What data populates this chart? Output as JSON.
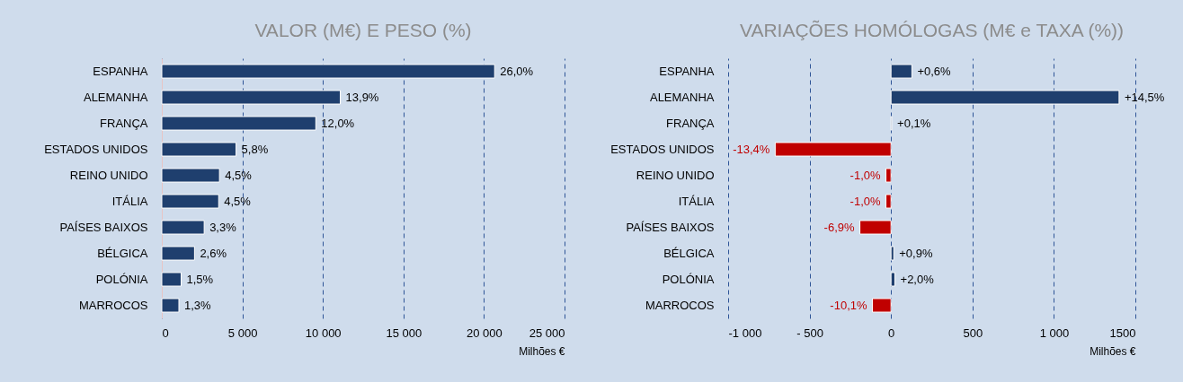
{
  "chart_data": [
    {
      "type": "bar",
      "orientation": "horizontal",
      "title": "VALOR (M€) E PESO (%)",
      "xlabel": "Milhões €",
      "categories": [
        "ESPANHA",
        "ALEMANHA",
        "FRANÇA",
        "ESTADOS UNIDOS",
        "REINO UNIDO",
        "ITÁLIA",
        "PAÍSES BAIXOS",
        "BÉLGICA",
        "POLÓNIA",
        "MARROCOS"
      ],
      "values": [
        20660,
        11080,
        9560,
        4610,
        3580,
        3530,
        2630,
        2030,
        1200,
        1060
      ],
      "colors": [
        "#1f3f6e",
        "#1f3f6e",
        "#1f3f6e",
        "#1f3f6e",
        "#1f3f6e",
        "#1f3f6e",
        "#1f3f6e",
        "#1f3f6e",
        "#1f3f6e",
        "#1f3f6e"
      ],
      "annotations": [
        {
          "text": "26,0%",
          "x": 20660,
          "y": "ESPANHA"
        },
        {
          "text": "13,9%",
          "x": 11080,
          "y": "ALEMANHA"
        },
        {
          "text": "12,0%",
          "x": 9560,
          "y": "FRANÇA"
        },
        {
          "text": "5,8%",
          "x": 4610,
          "y": "ESTADOS UNIDOS"
        },
        {
          "text": "4,5%",
          "x": 3580,
          "y": "REINO UNIDO"
        },
        {
          "text": "4,5%",
          "x": 3530,
          "y": "ITÁLIA"
        },
        {
          "text": "3,3%",
          "x": 2630,
          "y": "PAÍSES BAIXOS"
        },
        {
          "text": "2,6%",
          "x": 2030,
          "y": "BÉLGICA"
        },
        {
          "text": "1,5%",
          "x": 1200,
          "y": "POLÓNIA"
        },
        {
          "text": "1,3%",
          "x": 1060,
          "y": "MARROCOS"
        }
      ],
      "xlim": [
        0,
        25000
      ],
      "xticks": [
        0,
        {
          "value": 5000,
          "label": "5 000"
        },
        {
          "value": 10000,
          "label": "10 000"
        },
        {
          "value": 15000,
          "label": "15 000"
        },
        {
          "value": 20000,
          "label": "20 000"
        },
        {
          "value": 25000,
          "label": "25 000"
        }
      ],
      "grid": "x"
    },
    {
      "type": "bar",
      "orientation": "horizontal",
      "title": "VARIAÇÕES HOMÓLOGAS (M€ e TAXA (%))",
      "xlabel": "Milhões €",
      "categories": [
        "ESPANHA",
        "ALEMANHA",
        "FRANÇA",
        "ESTADOS UNIDOS",
        "REINO UNIDO",
        "ITÁLIA",
        "PAÍSES BAIXOS",
        "BÉLGICA",
        "POLÓNIA",
        "MARROCOS"
      ],
      "values": [
        128,
        1400,
        5,
        -711,
        -31,
        -31,
        -191,
        17,
        24,
        -114
      ],
      "colors": [
        "#1f3f6e",
        "#1f3f6e",
        "#1f3f6e",
        "#c00000",
        "#c00000",
        "#c00000",
        "#c00000",
        "#1f3f6e",
        "#1f3f6e",
        "#c00000"
      ],
      "annotations": [
        {
          "text": "+0,6%",
          "x": 128,
          "y": "ESPANHA"
        },
        {
          "text": "+14,5%",
          "x": 1400,
          "y": "ALEMANHA"
        },
        {
          "text": "+0,1%",
          "x": 5,
          "y": "FRANÇA"
        },
        {
          "text": "-13,4%",
          "x": -711,
          "y": "ESTADOS UNIDOS"
        },
        {
          "text": "-1,0%",
          "x": -31,
          "y": "REINO UNIDO"
        },
        {
          "text": "-1,0%",
          "x": -31,
          "y": "ITÁLIA"
        },
        {
          "text": "-6,9%",
          "x": -191,
          "y": "PAÍSES BAIXOS"
        },
        {
          "text": "+0,9%",
          "x": 17,
          "y": "BÉLGICA"
        },
        {
          "text": "+2,0%",
          "x": 24,
          "y": "POLÓNIA"
        },
        {
          "text": "-10,1%",
          "x": -114,
          "y": "MARROCOS"
        }
      ],
      "xlim": [
        -1000,
        1500
      ],
      "xticks": [
        {
          "value": -1000,
          "label": "-1 000"
        },
        {
          "value": -500,
          "label": "- 500"
        },
        0,
        500,
        {
          "value": 1000,
          "label": "1 000"
        },
        1500
      ],
      "grid": "x"
    }
  ]
}
